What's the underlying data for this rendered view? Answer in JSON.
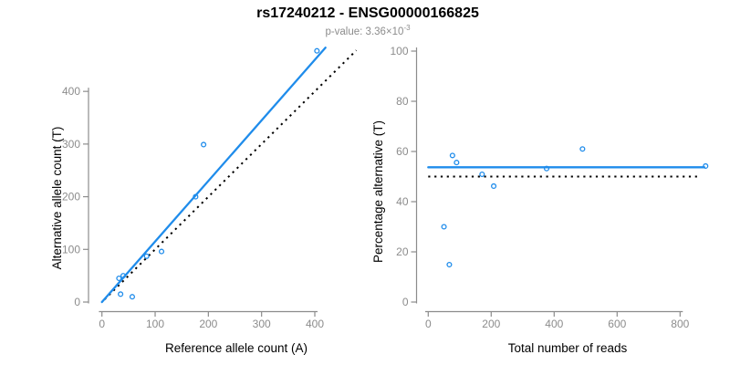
{
  "header": {
    "title": "rs17240212 - ENSG00000166825",
    "subtitle_prefix": "p-value: 3.36×10",
    "subtitle_exponent": "-3"
  },
  "colors": {
    "accent_blue": "#1f8ceb",
    "axis_gray": "#8c8c8c",
    "tick_label_gray": "#8c8c8c",
    "axis_title_black": "#000000",
    "dotted_line_black": "#000000"
  },
  "chart_data": [
    {
      "type": "scatter",
      "name": "allele-counts-scatter",
      "xlabel": "Reference allele count (A)",
      "ylabel": "Alternative allele count (T)",
      "xticks": [
        0,
        100,
        200,
        300,
        400
      ],
      "yticks": [
        0,
        100,
        200,
        300,
        400
      ],
      "xlim": [
        0,
        480
      ],
      "ylim": [
        0,
        490
      ],
      "grid": false,
      "legend": "none",
      "points": [
        [
          32,
          45
        ],
        [
          40,
          50
        ],
        [
          35,
          15
        ],
        [
          57,
          10
        ],
        [
          84,
          87
        ],
        [
          112,
          96
        ],
        [
          176,
          200
        ],
        [
          191,
          299
        ],
        [
          404,
          477
        ]
      ],
      "lines": [
        {
          "name": "identity-line",
          "style": "dotted",
          "x1": 5,
          "y1": 5,
          "x2": 478,
          "y2": 478
        },
        {
          "name": "fit-line",
          "style": "solid",
          "x1": 0,
          "y1": 0,
          "x2": 420,
          "y2": 483
        }
      ]
    },
    {
      "type": "scatter",
      "name": "percentage-vs-reads-scatter",
      "xlabel": "Total number of reads",
      "ylabel": "Percentage alternative (T)",
      "xticks": [
        0,
        200,
        400,
        600,
        800
      ],
      "yticks": [
        0,
        20,
        40,
        60,
        80,
        100
      ],
      "xlim": [
        0,
        900
      ],
      "ylim": [
        0,
        100
      ],
      "grid": false,
      "legend": "none",
      "points": [
        [
          77,
          58.4
        ],
        [
          90,
          55.6
        ],
        [
          50,
          30
        ],
        [
          67,
          14.9
        ],
        [
          171,
          50.9
        ],
        [
          208,
          46.2
        ],
        [
          376,
          53.2
        ],
        [
          490,
          61
        ],
        [
          881,
          54.2
        ]
      ],
      "lines": [
        {
          "name": "null-line",
          "style": "dotted",
          "x1": 0,
          "y1": 50,
          "x2": 866,
          "y2": 50
        },
        {
          "name": "fit-line",
          "style": "solid",
          "x1": 0,
          "y1": 53.7,
          "x2": 877,
          "y2": 53.7
        }
      ]
    }
  ]
}
